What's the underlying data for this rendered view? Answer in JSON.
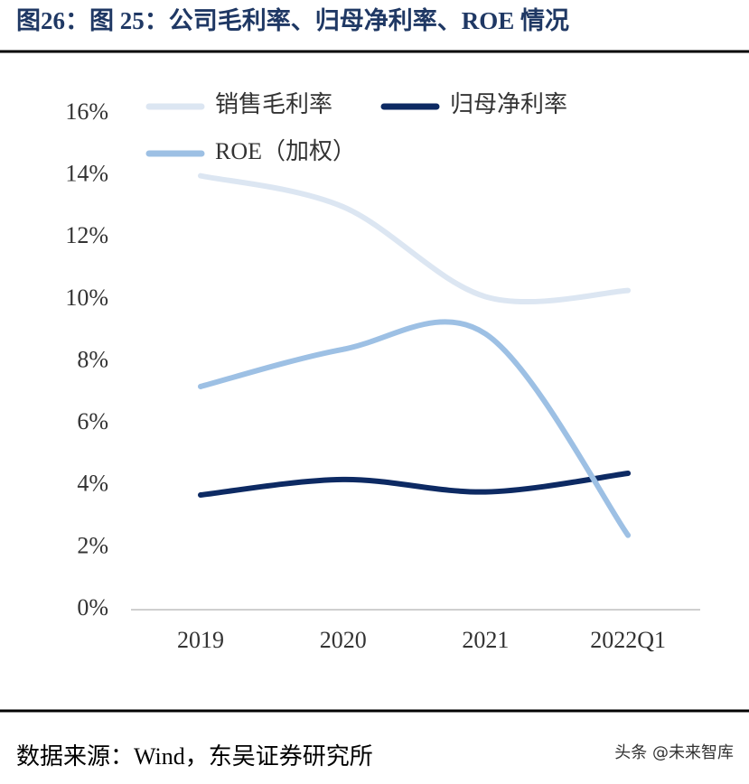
{
  "chart_data": {
    "type": "line",
    "title": "图26：图 25：公司毛利率、归母净利率、ROE 情况",
    "source": "数据来源：Wind，东吴证券研究所",
    "watermark": "头条 @未来智库",
    "categories": [
      "2019",
      "2020",
      "2021",
      "2022Q1"
    ],
    "series": [
      {
        "name": "销售毛利率",
        "color": "#dce6f2",
        "values": [
          14.0,
          13.0,
          10.1,
          10.3
        ]
      },
      {
        "name": "归母净利率",
        "color": "#0d2a63",
        "values": [
          3.7,
          4.2,
          3.8,
          4.4
        ]
      },
      {
        "name": "ROE（加权）",
        "color": "#9dc0e4",
        "values": [
          7.2,
          8.4,
          8.9,
          2.4
        ]
      }
    ],
    "ylim": [
      0,
      16
    ],
    "yticks": [
      {
        "value": 0,
        "label": "0%"
      },
      {
        "value": 2,
        "label": "2%"
      },
      {
        "value": 4,
        "label": "4%"
      },
      {
        "value": 6,
        "label": "6%"
      },
      {
        "value": 8,
        "label": "8%"
      },
      {
        "value": 10,
        "label": "10%"
      },
      {
        "value": 12,
        "label": "12%"
      },
      {
        "value": 14,
        "label": "14%"
      },
      {
        "value": 16,
        "label": "16%"
      }
    ],
    "grid": false,
    "smooth": true
  }
}
